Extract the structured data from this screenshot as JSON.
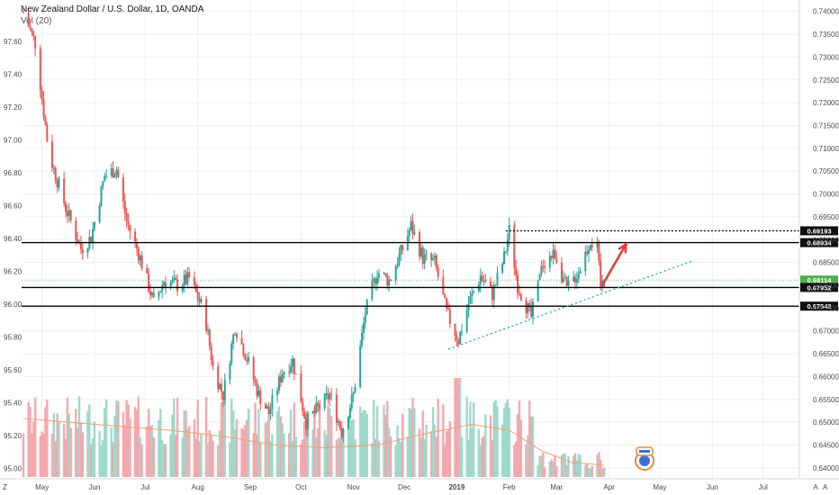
{
  "header": {
    "title": "New Zealand Dollar / U.S. Dollar, 1D, OANDA",
    "volume_label": "Vol (20)"
  },
  "corner_labels": {
    "left": "Z",
    "right": "A"
  },
  "colors": {
    "up": "#26a69a",
    "down": "#ef5350",
    "vol_up": "#9ed9cb",
    "vol_down": "#f4a8ae",
    "vol_ma": "#f0a070",
    "level": "#000000",
    "support_line": "#26a69a",
    "arrow": "#e53935",
    "current_price": "#4caf50"
  },
  "chart_data": {
    "type": "candlestick",
    "title": "New Zealand Dollar / U.S. Dollar, 1D, OANDA",
    "x_labels": [
      "May",
      "Jun",
      "Jul",
      "Aug",
      "Sep",
      "Oct",
      "Nov",
      "Dec",
      "2019",
      "Feb",
      "Mar",
      "Apr",
      "May",
      "Jun",
      "Jul",
      "A"
    ],
    "left_axis_ticks": [
      "97.60",
      "97.40",
      "97.20",
      "97.00",
      "96.80",
      "96.60",
      "96.40",
      "96.20",
      "96.00",
      "95.80",
      "95.60",
      "95.40",
      "95.20",
      "95.00"
    ],
    "right_axis_ticks": [
      "0.74000",
      "0.73500",
      "0.73000",
      "0.72500",
      "0.72000",
      "0.71500",
      "0.71000",
      "0.70500",
      "0.70000",
      "0.69500",
      "0.69000",
      "0.68500",
      "0.68000",
      "0.67500",
      "0.67000",
      "0.66500",
      "0.66000",
      "0.65500",
      "0.65000",
      "0.64500",
      "0.64000"
    ],
    "price_range": [
      0.6376,
      0.7425
    ],
    "price_levels": [
      {
        "value": 0.69193,
        "label": "0.69193",
        "style": "dotted",
        "box": "dark"
      },
      {
        "value": 0.68934,
        "label": "0.68934",
        "style": "solid",
        "box": "dark"
      },
      {
        "value": 0.68114,
        "label": "0.68114",
        "style": "current",
        "box": "green"
      },
      {
        "value": 0.67952,
        "label": "0.67952",
        "style": "solid",
        "box": "dark"
      },
      {
        "value": 0.67542,
        "label": "0.67542",
        "style": "solid",
        "box": "dark"
      }
    ],
    "trendline": {
      "from": [
        "2018-12-27",
        0.666
      ],
      "to": [
        "2019-05-20",
        0.6853
      ],
      "style": "dotted"
    },
    "projection_arrow": {
      "from": [
        "2019-03-28",
        0.68
      ],
      "to": [
        "2019-04-11",
        0.689
      ]
    },
    "price_path": [
      [
        "2018-04-20",
        0.7398
      ],
      [
        "2018-04-27",
        0.733
      ],
      [
        "2018-05-05",
        0.709
      ],
      [
        "2018-05-15",
        0.697
      ],
      [
        "2018-05-24",
        0.688
      ],
      [
        "2018-05-30",
        0.6905
      ],
      [
        "2018-06-07",
        0.704
      ],
      [
        "2018-06-14",
        0.7055
      ],
      [
        "2018-06-20",
        0.694
      ],
      [
        "2018-06-28",
        0.686
      ],
      [
        "2018-07-06",
        0.676
      ],
      [
        "2018-07-12",
        0.681
      ],
      [
        "2018-07-20",
        0.68
      ],
      [
        "2018-07-27",
        0.6815
      ],
      [
        "2018-08-05",
        0.674
      ],
      [
        "2018-08-10",
        0.662
      ],
      [
        "2018-08-16",
        0.656
      ],
      [
        "2018-08-23",
        0.671
      ],
      [
        "2018-08-30",
        0.664
      ],
      [
        "2018-09-06",
        0.656
      ],
      [
        "2018-09-12",
        0.652
      ],
      [
        "2018-09-20",
        0.661
      ],
      [
        "2018-09-26",
        0.6635
      ],
      [
        "2018-10-04",
        0.65
      ],
      [
        "2018-10-11",
        0.653
      ],
      [
        "2018-10-18",
        0.656
      ],
      [
        "2018-10-25",
        0.648
      ],
      [
        "2018-11-01",
        0.656
      ],
      [
        "2018-11-08",
        0.674
      ],
      [
        "2018-11-15",
        0.683
      ],
      [
        "2018-11-22",
        0.681
      ],
      [
        "2018-11-30",
        0.688
      ],
      [
        "2018-12-05",
        0.693
      ],
      [
        "2018-12-12",
        0.686
      ],
      [
        "2018-12-19",
        0.685
      ],
      [
        "2018-12-26",
        0.674
      ],
      [
        "2019-01-02",
        0.668
      ],
      [
        "2019-01-08",
        0.676
      ],
      [
        "2019-01-15",
        0.682
      ],
      [
        "2019-01-22",
        0.678
      ],
      [
        "2019-01-29",
        0.686
      ],
      [
        "2019-02-01",
        0.692
      ],
      [
        "2019-02-06",
        0.68
      ],
      [
        "2019-02-14",
        0.673
      ],
      [
        "2019-02-21",
        0.685
      ],
      [
        "2019-02-28",
        0.687
      ],
      [
        "2019-03-07",
        0.679
      ],
      [
        "2019-03-14",
        0.683
      ],
      [
        "2019-03-21",
        0.69
      ],
      [
        "2019-03-25",
        0.688
      ],
      [
        "2019-03-27",
        0.6795
      ],
      [
        "2019-03-29",
        0.6811
      ]
    ],
    "volume_ma": [
      [
        "2018-04-20",
        1.0
      ],
      [
        "2018-06-01",
        0.9
      ],
      [
        "2018-07-15",
        0.8
      ],
      [
        "2018-08-15",
        0.7
      ],
      [
        "2018-09-15",
        0.55
      ],
      [
        "2018-10-15",
        0.5
      ],
      [
        "2018-11-15",
        0.55
      ],
      [
        "2018-12-15",
        0.75
      ],
      [
        "2019-01-10",
        0.9
      ],
      [
        "2019-02-01",
        0.8
      ],
      [
        "2019-02-20",
        0.45
      ],
      [
        "2019-03-10",
        0.25
      ],
      [
        "2019-03-29",
        0.2
      ]
    ],
    "legend": "none",
    "grid": true
  }
}
